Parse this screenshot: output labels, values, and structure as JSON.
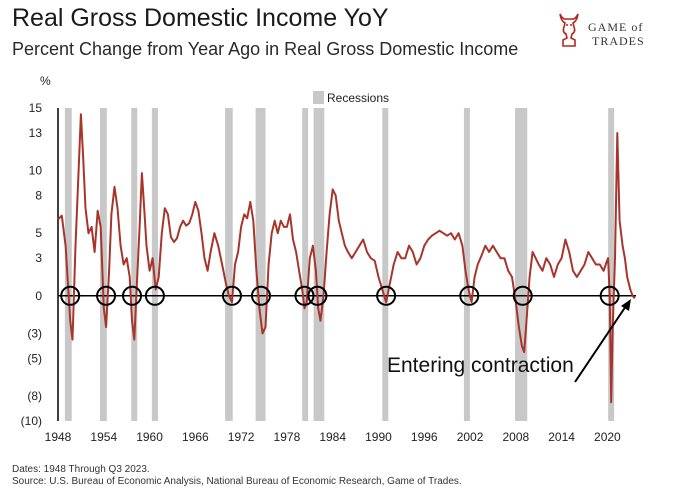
{
  "header": {
    "title": "Real Gross Domestic Income YoY",
    "subtitle": "Percent Change from Year Ago in Real Gross Domestic Income"
  },
  "logo": {
    "line1": "GAME of",
    "line2": "TRADES",
    "icon": "bull-knight-icon"
  },
  "footer": {
    "dates": "Dates: 1948 Through Q3 2023.",
    "source": "Source: U.S. Bureau of Economic Analysis, National Bureau of Economic Research, Game of Trades."
  },
  "colors": {
    "line": "#a8352c",
    "recession": "#c8c8c8",
    "text": "#222222"
  },
  "chart_data": {
    "type": "line",
    "ylabel": "%",
    "legend": {
      "label": "Recessions",
      "placement": "top-center"
    },
    "annotation": {
      "text": "Entering contraction"
    },
    "x_ticks": [
      1948,
      1954,
      1960,
      1966,
      1972,
      1978,
      1984,
      1990,
      1996,
      2002,
      2008,
      2014,
      2020
    ],
    "y_ticks": [
      {
        "value": 15,
        "label": "15"
      },
      {
        "value": 13,
        "label": "13"
      },
      {
        "value": 10,
        "label": "10"
      },
      {
        "value": 8,
        "label": "8"
      },
      {
        "value": 5,
        "label": "5"
      },
      {
        "value": 3,
        "label": "3"
      },
      {
        "value": 0,
        "label": "0"
      },
      {
        "value": -3,
        "label": "(3)"
      },
      {
        "value": -5,
        "label": "(5)"
      },
      {
        "value": -8,
        "label": "(8)"
      },
      {
        "value": -10,
        "label": "(10)"
      }
    ],
    "xlim": [
      1948,
      2023.75
    ],
    "ylim": [
      -10,
      15
    ],
    "recessions": [
      [
        1948.9,
        1949.8
      ],
      [
        1953.5,
        1954.4
      ],
      [
        1957.6,
        1958.3
      ],
      [
        1960.3,
        1961.1
      ],
      [
        1969.9,
        1970.9
      ],
      [
        1973.9,
        1975.2
      ],
      [
        1980.0,
        1980.5
      ],
      [
        1981.5,
        1982.9
      ],
      [
        1990.5,
        1991.2
      ],
      [
        2001.2,
        2001.9
      ],
      [
        2007.9,
        2009.5
      ],
      [
        2020.1,
        2020.4
      ]
    ],
    "circle_markers": [
      1949.6,
      1954.3,
      1957.7,
      1960.7,
      1970.8,
      1974.6,
      1980.3,
      1982.0,
      1991.0,
      2001.9,
      2008.9,
      2020.3
    ],
    "series": [
      {
        "x": [
          1948.0,
          1948.5,
          1949.0,
          1949.3,
          1949.6,
          1949.9,
          1950.3,
          1950.7,
          1951.0,
          1951.3,
          1951.6,
          1952.0,
          1952.4,
          1952.8,
          1953.2,
          1953.6,
          1954.0,
          1954.3,
          1954.7,
          1955.0,
          1955.4,
          1955.8,
          1956.2,
          1956.6,
          1957.0,
          1957.4,
          1957.7,
          1958.0,
          1958.3,
          1958.7,
          1959.0,
          1959.3,
          1959.6,
          1960.0,
          1960.4,
          1960.8,
          1961.2,
          1961.6,
          1962.0,
          1962.4,
          1962.8,
          1963.2,
          1963.6,
          1964.0,
          1964.4,
          1964.8,
          1965.2,
          1965.6,
          1966.0,
          1966.4,
          1966.8,
          1967.2,
          1967.6,
          1968.0,
          1968.5,
          1969.0,
          1969.5,
          1970.0,
          1970.4,
          1970.8,
          1971.2,
          1971.6,
          1972.0,
          1972.4,
          1972.8,
          1973.2,
          1973.6,
          1974.0,
          1974.4,
          1974.8,
          1975.2,
          1975.6,
          1976.0,
          1976.4,
          1976.8,
          1977.2,
          1977.6,
          1978.0,
          1978.4,
          1978.8,
          1979.2,
          1979.6,
          1980.0,
          1980.3,
          1980.6,
          1981.0,
          1981.4,
          1981.8,
          1982.1,
          1982.4,
          1982.8,
          1983.2,
          1983.6,
          1984.0,
          1984.4,
          1984.8,
          1985.2,
          1985.6,
          1986.0,
          1986.5,
          1987.0,
          1987.5,
          1988.0,
          1988.5,
          1989.0,
          1989.5,
          1990.0,
          1990.5,
          1991.0,
          1991.5,
          1992.0,
          1992.5,
          1993.0,
          1993.5,
          1994.0,
          1994.5,
          1995.0,
          1995.5,
          1996.0,
          1996.5,
          1997.0,
          1997.5,
          1998.0,
          1998.5,
          1999.0,
          1999.5,
          2000.0,
          2000.5,
          2001.0,
          2001.4,
          2001.8,
          2002.2,
          2002.6,
          2003.0,
          2003.5,
          2004.0,
          2004.5,
          2005.0,
          2005.5,
          2006.0,
          2006.5,
          2007.0,
          2007.5,
          2008.0,
          2008.4,
          2008.8,
          2009.1,
          2009.4,
          2009.8,
          2010.2,
          2010.6,
          2011.0,
          2011.5,
          2012.0,
          2012.5,
          2013.0,
          2013.5,
          2014.0,
          2014.5,
          2015.0,
          2015.5,
          2016.0,
          2016.5,
          2017.0,
          2017.5,
          2018.0,
          2018.5,
          2019.0,
          2019.5,
          2019.9,
          2020.1,
          2020.3,
          2020.5,
          2020.7,
          2021.0,
          2021.3,
          2021.6,
          2022.0,
          2022.3,
          2022.6,
          2023.0,
          2023.3,
          2023.6
        ],
        "y": [
          6.1,
          6.4,
          4.0,
          1.0,
          -2.0,
          -3.5,
          4.0,
          10.0,
          14.5,
          11.0,
          7.0,
          5.0,
          5.5,
          3.5,
          6.8,
          5.5,
          -1.0,
          -2.5,
          2.0,
          6.5,
          8.7,
          7.0,
          4.0,
          2.5,
          3.0,
          1.5,
          -2.0,
          -3.5,
          0.5,
          5.5,
          9.8,
          7.0,
          4.0,
          2.0,
          3.0,
          0.5,
          1.5,
          5.0,
          7.0,
          6.5,
          4.7,
          4.3,
          4.6,
          5.5,
          6.0,
          5.6,
          5.8,
          6.5,
          7.5,
          6.8,
          5.0,
          3.0,
          2.0,
          3.5,
          5.0,
          4.0,
          2.5,
          1.0,
          0.0,
          -0.5,
          2.5,
          3.5,
          5.5,
          6.5,
          6.2,
          7.5,
          6.0,
          2.0,
          -1.0,
          -3.0,
          -2.5,
          2.5,
          5.0,
          6.0,
          5.0,
          6.0,
          5.5,
          5.5,
          6.5,
          4.5,
          3.5,
          2.0,
          0.5,
          -1.0,
          -0.5,
          3.0,
          4.0,
          2.0,
          -1.0,
          -2.0,
          0.0,
          3.5,
          6.5,
          8.5,
          8.0,
          6.0,
          5.0,
          4.0,
          3.5,
          3.0,
          3.5,
          4.0,
          4.5,
          3.5,
          3.0,
          2.8,
          1.5,
          0.5,
          -0.5,
          1.0,
          2.5,
          3.5,
          3.0,
          3.0,
          4.0,
          3.5,
          2.5,
          3.0,
          4.0,
          4.5,
          4.8,
          5.0,
          5.2,
          5.0,
          4.8,
          5.0,
          4.5,
          5.0,
          4.0,
          2.0,
          0.5,
          -0.5,
          1.5,
          2.5,
          3.2,
          4.0,
          3.5,
          4.0,
          3.5,
          3.0,
          3.0,
          2.0,
          1.5,
          -0.5,
          -2.5,
          -4.0,
          -4.5,
          -2.0,
          1.5,
          3.5,
          3.0,
          2.5,
          2.0,
          3.0,
          2.5,
          1.5,
          2.5,
          3.0,
          4.5,
          3.5,
          2.0,
          1.5,
          2.0,
          2.5,
          3.5,
          3.0,
          2.5,
          2.5,
          2.0,
          2.7,
          3.0,
          0.0,
          -8.5,
          -2.5,
          3.0,
          13.0,
          6.0,
          4.0,
          3.0,
          1.5,
          0.5,
          0.0,
          -0.2
        ]
      }
    ]
  }
}
